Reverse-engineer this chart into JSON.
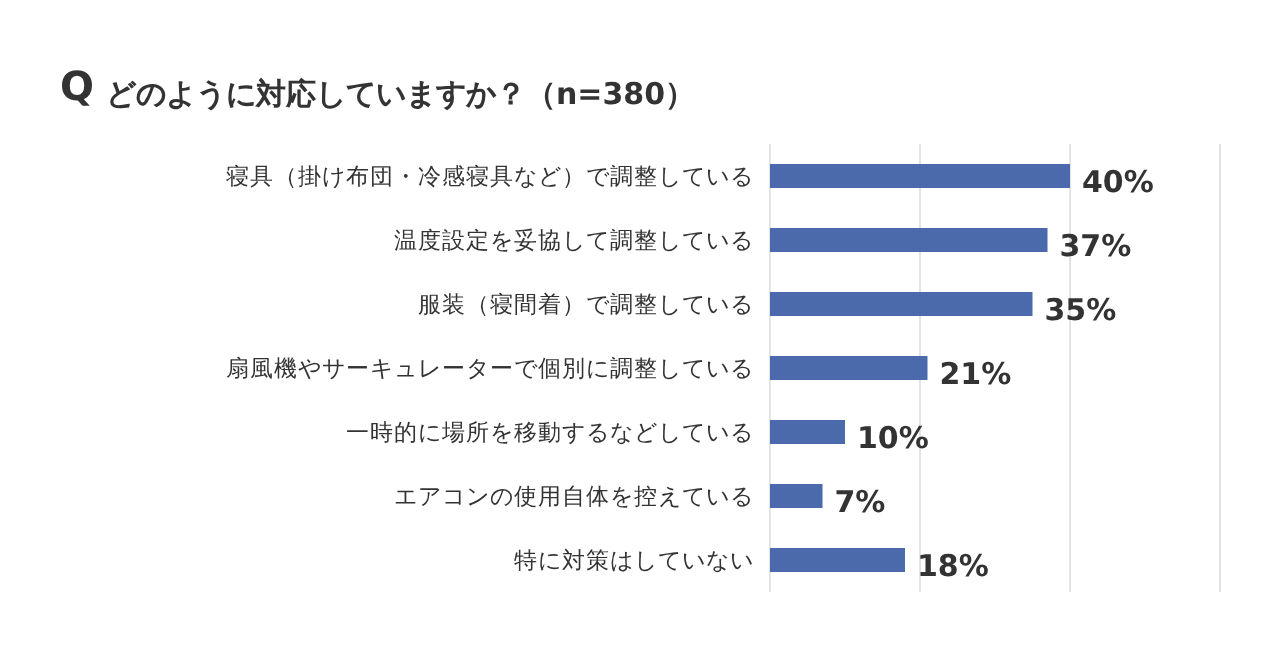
{
  "chart_data": {
    "type": "bar",
    "orientation": "horizontal",
    "title": "どのように対応していますか？（n=380）",
    "annotations": [
      "Q"
    ],
    "categories": [
      "寝具（掛け布団・冷感寝具など）で調整している",
      "温度設定を妥協して調整している",
      "服装（寝間着）で調整している",
      "扇風機やサーキュレーターで個別に調整している",
      "一時的に場所を移動するなどしている",
      "エアコンの使用自体を控えている",
      "特に対策はしていない"
    ],
    "values": [
      40,
      37,
      35,
      21,
      10,
      7,
      18
    ],
    "value_labels": [
      "40%",
      "37%",
      "35%",
      "21%",
      "10%",
      "7%",
      "18%"
    ],
    "color": "#4a6aab",
    "xlim": [
      0,
      60
    ],
    "xticks": [
      {
        "value": 0,
        "label": null
      },
      {
        "value": 20,
        "label": null
      },
      {
        "value": 40,
        "label": null
      },
      {
        "value": 60,
        "label": null
      }
    ],
    "grid": "x",
    "tick_labels": "y"
  }
}
